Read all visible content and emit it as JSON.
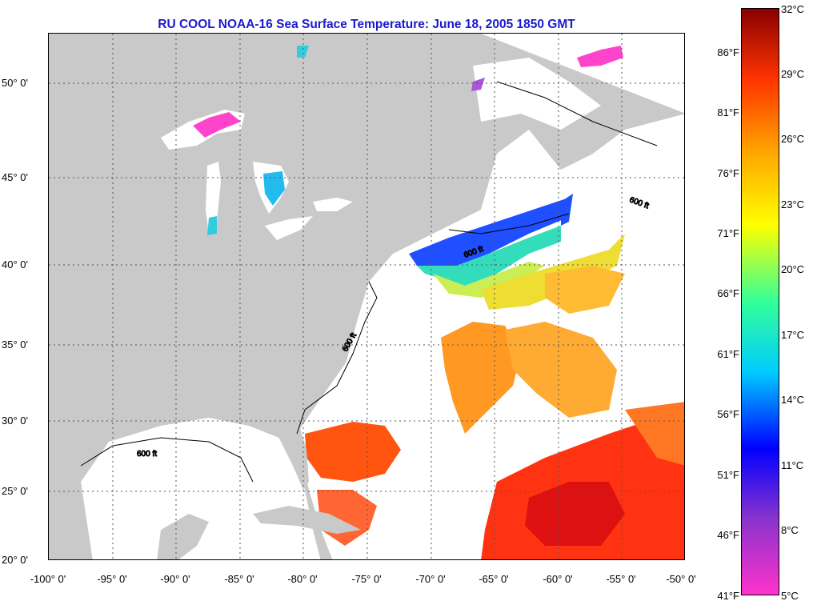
{
  "title": "RU COOL  NOAA-16  Sea Surface Temperature:  June 18, 2005 1850 GMT",
  "map": {
    "lon_range": [
      -100,
      -50
    ],
    "lat_range": [
      20,
      52.5
    ],
    "land_color": "#c9c9c9",
    "water_color": "#ffffff",
    "grid": true,
    "lat_ticks": [
      "50° 0'",
      "45° 0'",
      "40° 0'",
      "35° 0'",
      "30° 0'",
      "25° 0'",
      "20° 0'"
    ],
    "lon_ticks": [
      "-100° 0'",
      "-95° 0'",
      "-90° 0'",
      "-85° 0'",
      "-80° 0'",
      "-75° 0'",
      "-70° 0'",
      "-65° 0'",
      "-60° 0'",
      "-55° 0'",
      "-50° 0'"
    ],
    "isobath_label": "600 ft"
  },
  "colorbar": {
    "celsius_labels": [
      "32°C",
      "29°C",
      "26°C",
      "23°C",
      "20°C",
      "17°C",
      "14°C",
      "11°C",
      "8°C",
      "5°C"
    ],
    "fahrenheit_labels": [
      "86°F",
      "81°F",
      "76°F",
      "71°F",
      "66°F",
      "61°F",
      "56°F",
      "51°F",
      "46°F",
      "41°F"
    ],
    "range_c": [
      5,
      32
    ],
    "colors": [
      "#ff33cc",
      "#8833cc",
      "#0000ff",
      "#00ccff",
      "#33ff99",
      "#ffff00",
      "#ffaa00",
      "#ff3300",
      "#880000"
    ]
  }
}
